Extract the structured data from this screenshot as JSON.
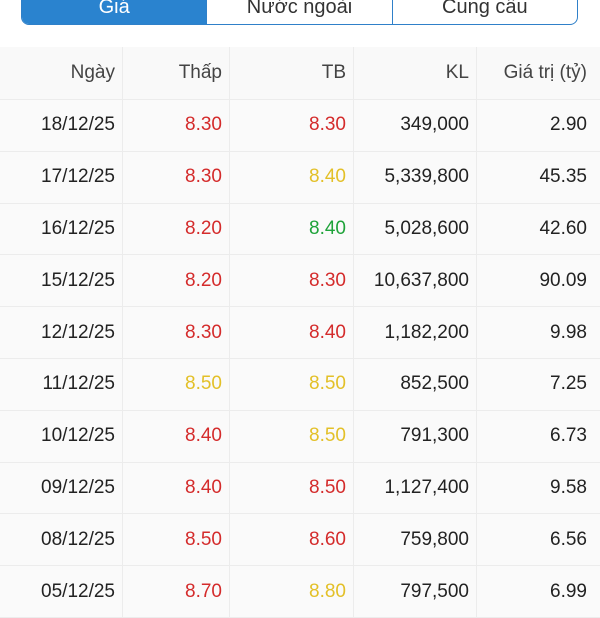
{
  "tabs": [
    {
      "label": "Giá",
      "active": true
    },
    {
      "label": "Nước ngoài",
      "active": false
    },
    {
      "label": "Cung cầu",
      "active": false
    }
  ],
  "table": {
    "headers": [
      "Ngày",
      "Thấp",
      "TB",
      "KL",
      "Giá trị (tỷ)"
    ],
    "rows": [
      {
        "date": "18/12/25",
        "low": "8.30",
        "low_color": "#d42b2b",
        "avg": "8.30",
        "avg_color": "#d42b2b",
        "volume": "349,000",
        "value": "2.90"
      },
      {
        "date": "17/12/25",
        "low": "8.30",
        "low_color": "#d42b2b",
        "avg": "8.40",
        "avg_color": "#e3c028",
        "volume": "5,339,800",
        "value": "45.35"
      },
      {
        "date": "16/12/25",
        "low": "8.20",
        "low_color": "#d42b2b",
        "avg": "8.40",
        "avg_color": "#1fa33a",
        "volume": "5,028,600",
        "value": "42.60"
      },
      {
        "date": "15/12/25",
        "low": "8.20",
        "low_color": "#d42b2b",
        "avg": "8.30",
        "avg_color": "#d42b2b",
        "volume": "10,637,800",
        "value": "90.09"
      },
      {
        "date": "12/12/25",
        "low": "8.30",
        "low_color": "#d42b2b",
        "avg": "8.40",
        "avg_color": "#d42b2b",
        "volume": "1,182,200",
        "value": "9.98"
      },
      {
        "date": "11/12/25",
        "low": "8.50",
        "low_color": "#e3c028",
        "avg": "8.50",
        "avg_color": "#e3c028",
        "volume": "852,500",
        "value": "7.25"
      },
      {
        "date": "10/12/25",
        "low": "8.40",
        "low_color": "#d42b2b",
        "avg": "8.50",
        "avg_color": "#e3c028",
        "volume": "791,300",
        "value": "6.73"
      },
      {
        "date": "09/12/25",
        "low": "8.40",
        "low_color": "#d42b2b",
        "avg": "8.50",
        "avg_color": "#d42b2b",
        "volume": "1,127,400",
        "value": "9.58"
      },
      {
        "date": "08/12/25",
        "low": "8.50",
        "low_color": "#d42b2b",
        "avg": "8.60",
        "avg_color": "#d42b2b",
        "volume": "759,800",
        "value": "6.56"
      },
      {
        "date": "05/12/25",
        "low": "8.70",
        "low_color": "#d42b2b",
        "avg": "8.80",
        "avg_color": "#e3c028",
        "volume": "797,500",
        "value": "6.99"
      }
    ]
  }
}
